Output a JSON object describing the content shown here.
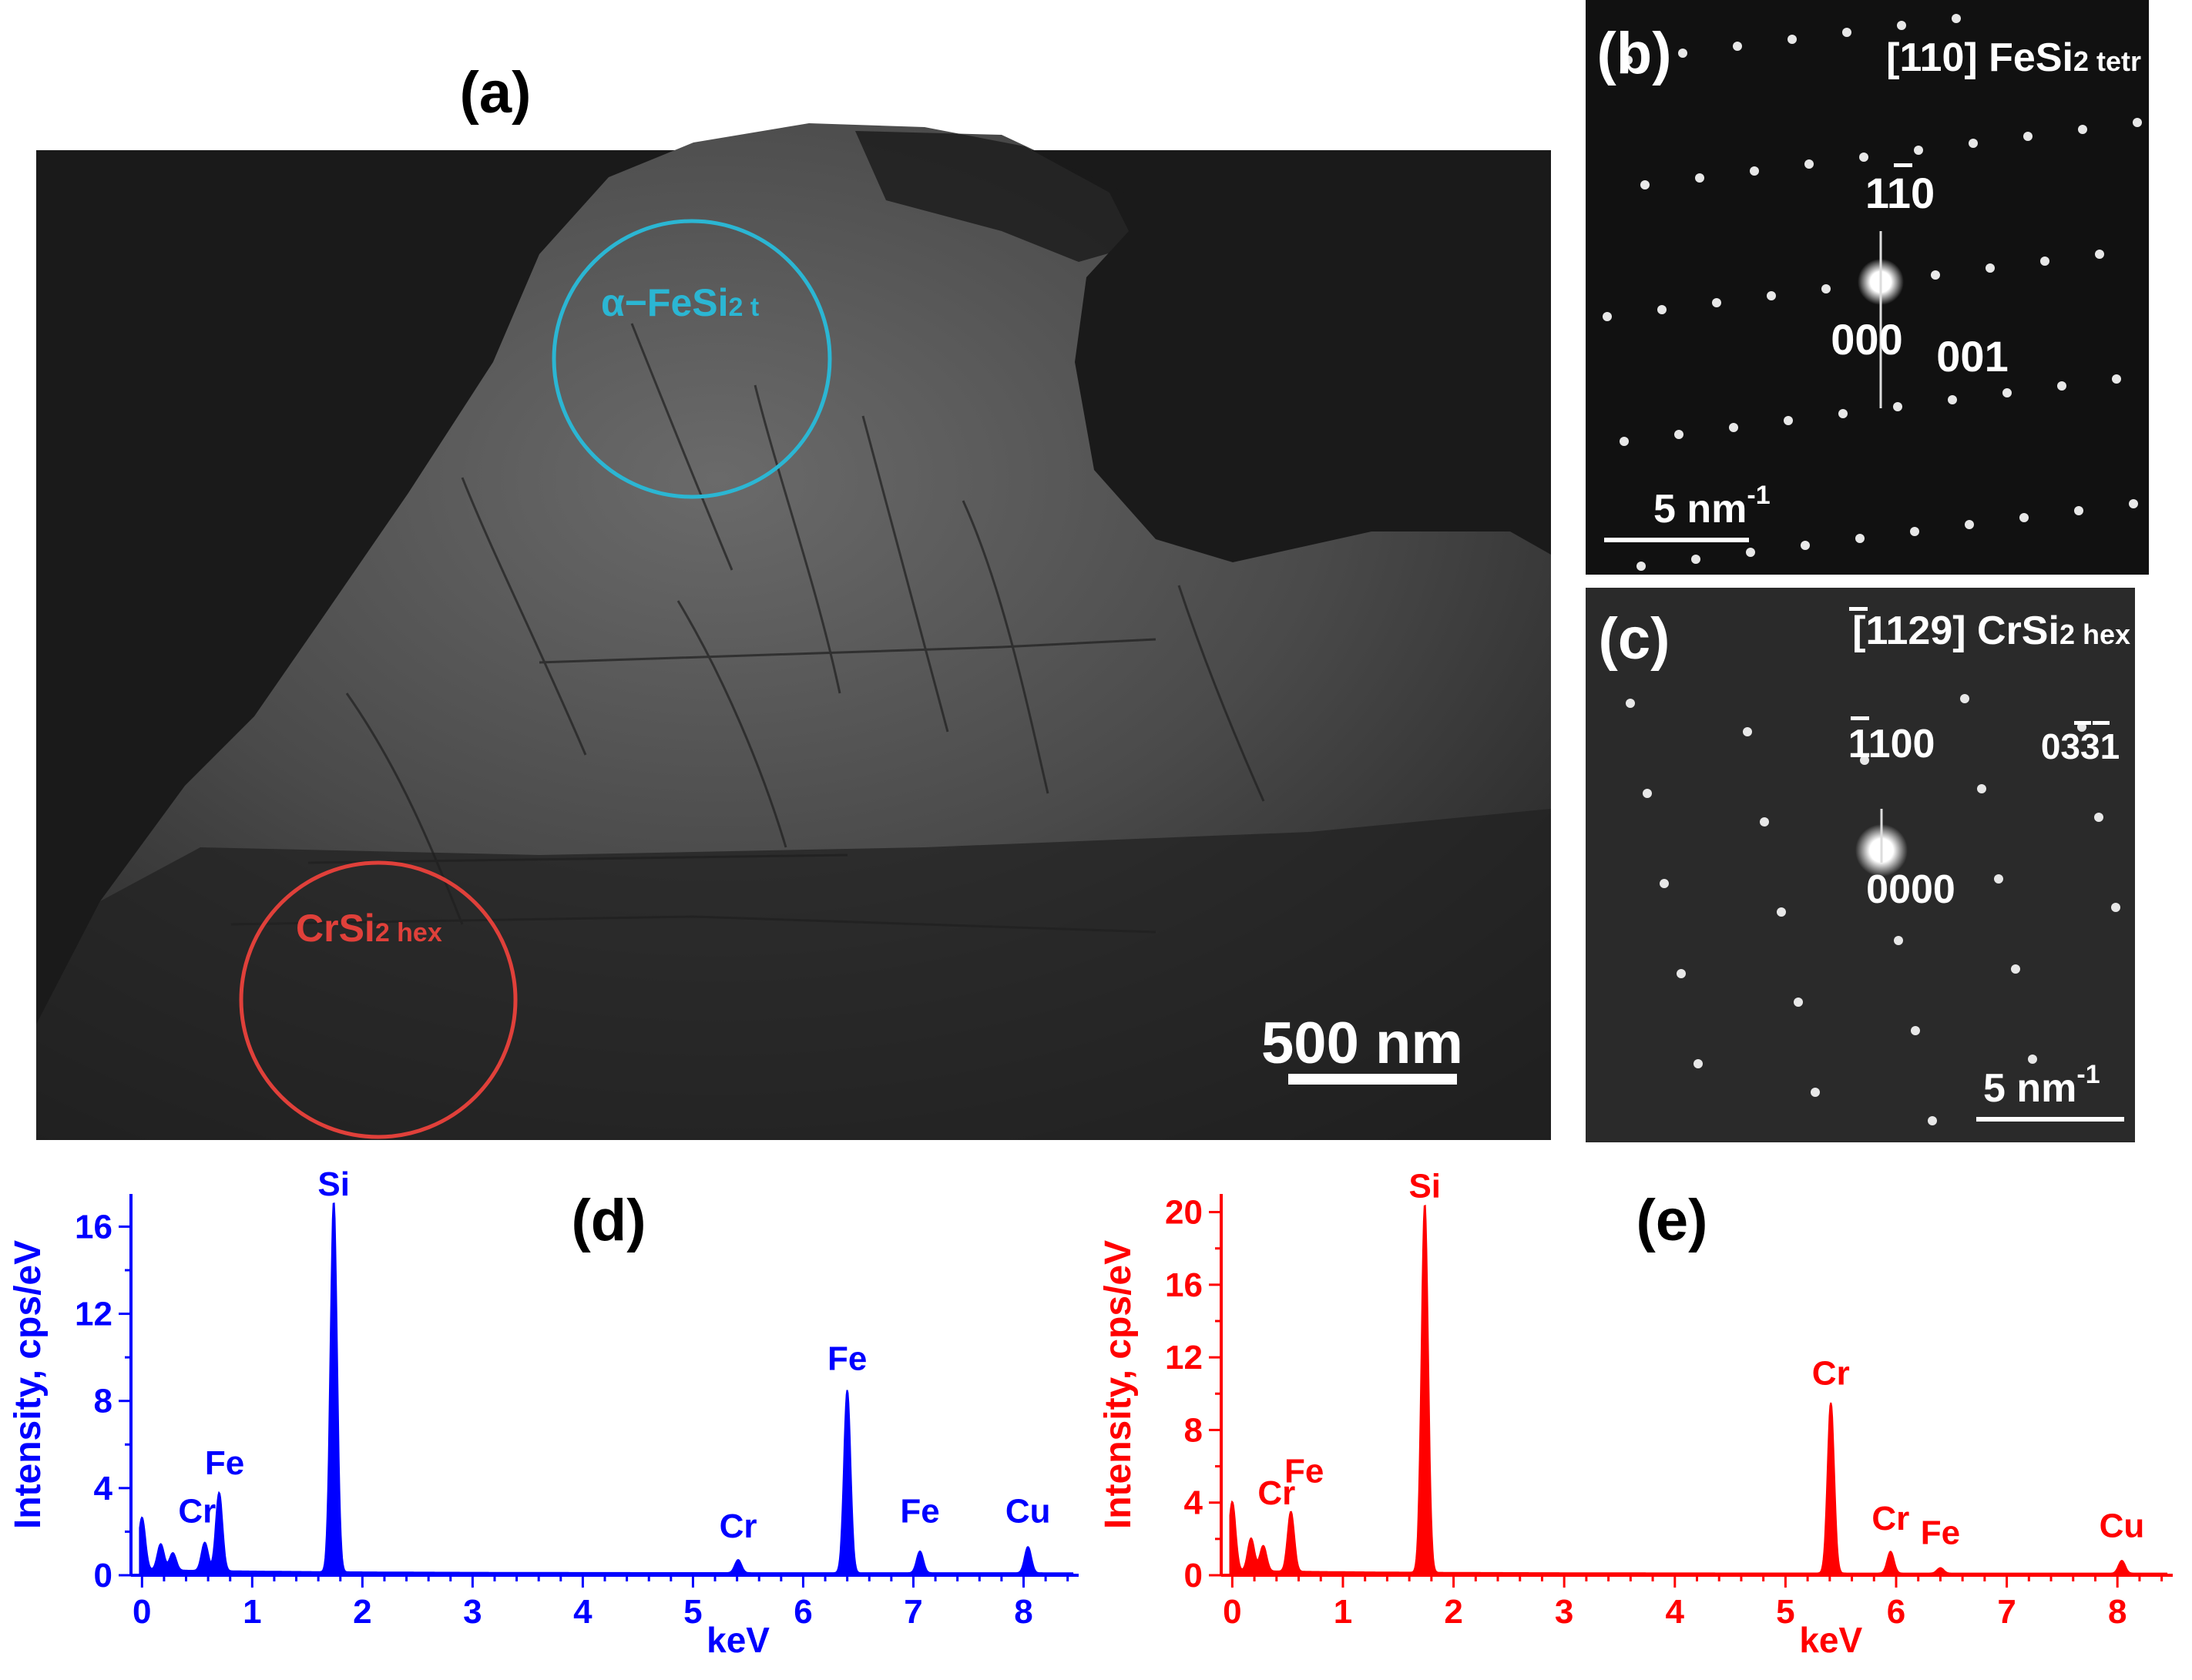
{
  "panel_a": {
    "label": "(a)",
    "circle_blue": {
      "prefix": "α−FeSi",
      "sub": "2 t"
    },
    "circle_red": {
      "prefix": "CrSi",
      "sub": "2 hex"
    },
    "scale_bar": "500 nm",
    "colors": {
      "blue_circle": "#2bb6d3",
      "red_circle": "#e0403a"
    }
  },
  "panel_b": {
    "label": "(b)",
    "title_prefix": "[110] FeSi",
    "title_sub": "2 tetr",
    "spot_labels": {
      "a": "110",
      "b": "000",
      "c": "001"
    },
    "scale_bar": "5 nm",
    "scale_exp": "-1"
  },
  "panel_c": {
    "label": "(c)",
    "title_prefix": "[1129] CrSi",
    "title_sub": "2 hex",
    "spot_labels": {
      "a": "1100",
      "b": "0331",
      "c": "0000"
    },
    "scale_bar": "5 nm",
    "scale_exp": "-1"
  },
  "chart_data": [
    {
      "type": "line",
      "panel_label": "(d)",
      "xlabel": "keV",
      "ylabel": "Intensity, cps/eV",
      "xlim": [
        -0.1,
        8.5
      ],
      "ylim": [
        0,
        17.5
      ],
      "xticks": [
        0,
        1,
        2,
        3,
        4,
        5,
        6,
        7,
        8
      ],
      "yticks": [
        0,
        4,
        8,
        12,
        16
      ],
      "color": "#0000ff",
      "background": 0.1,
      "peaks": [
        {
          "x": 0.0,
          "y": 2.4
        },
        {
          "x": 0.17,
          "y": 1.2
        },
        {
          "x": 0.28,
          "y": 0.8
        },
        {
          "x": 0.57,
          "y": 1.3
        },
        {
          "x": 0.7,
          "y": 3.6
        },
        {
          "x": 1.74,
          "y": 17.0
        },
        {
          "x": 5.41,
          "y": 0.6
        },
        {
          "x": 6.4,
          "y": 8.4
        },
        {
          "x": 7.06,
          "y": 1.0
        },
        {
          "x": 8.04,
          "y": 1.2
        }
      ],
      "annotations": [
        {
          "text": "Si",
          "x": 1.74,
          "y": 17.0
        },
        {
          "text": "Cr",
          "x": 0.5,
          "y": 2.0
        },
        {
          "text": "Fe",
          "x": 0.75,
          "y": 4.2
        },
        {
          "text": "Cr",
          "x": 5.41,
          "y": 1.3
        },
        {
          "text": "Fe",
          "x": 6.4,
          "y": 9.0
        },
        {
          "text": "Fe",
          "x": 7.06,
          "y": 2.0
        },
        {
          "text": "Cu",
          "x": 8.04,
          "y": 2.0
        }
      ]
    },
    {
      "type": "line",
      "panel_label": "(e)",
      "xlabel": "keV",
      "ylabel": "Intensity, cps/eV",
      "xlim": [
        -0.1,
        8.5
      ],
      "ylim": [
        0,
        21
      ],
      "xticks": [
        0,
        1,
        2,
        3,
        4,
        5,
        6,
        7,
        8
      ],
      "yticks": [
        0,
        4,
        8,
        12,
        16,
        20
      ],
      "color": "#ff0000",
      "background": 0.1,
      "peaks": [
        {
          "x": 0.0,
          "y": 3.8
        },
        {
          "x": 0.17,
          "y": 1.8
        },
        {
          "x": 0.28,
          "y": 1.4
        },
        {
          "x": 0.53,
          "y": 3.3
        },
        {
          "x": 1.74,
          "y": 20.3
        },
        {
          "x": 5.41,
          "y": 9.4
        },
        {
          "x": 5.95,
          "y": 1.2
        },
        {
          "x": 6.4,
          "y": 0.3
        },
        {
          "x": 8.04,
          "y": 0.7
        }
      ],
      "annotations": [
        {
          "text": "Si",
          "x": 1.74,
          "y": 20.3
        },
        {
          "text": "Cr",
          "x": 0.4,
          "y": 3.4
        },
        {
          "text": "Fe",
          "x": 0.65,
          "y": 4.6
        },
        {
          "text": "Cr",
          "x": 5.41,
          "y": 10.0
        },
        {
          "text": "Cr",
          "x": 5.95,
          "y": 2.0
        },
        {
          "text": "Fe",
          "x": 6.4,
          "y": 1.2
        },
        {
          "text": "Cu",
          "x": 8.04,
          "y": 1.6
        }
      ]
    }
  ]
}
